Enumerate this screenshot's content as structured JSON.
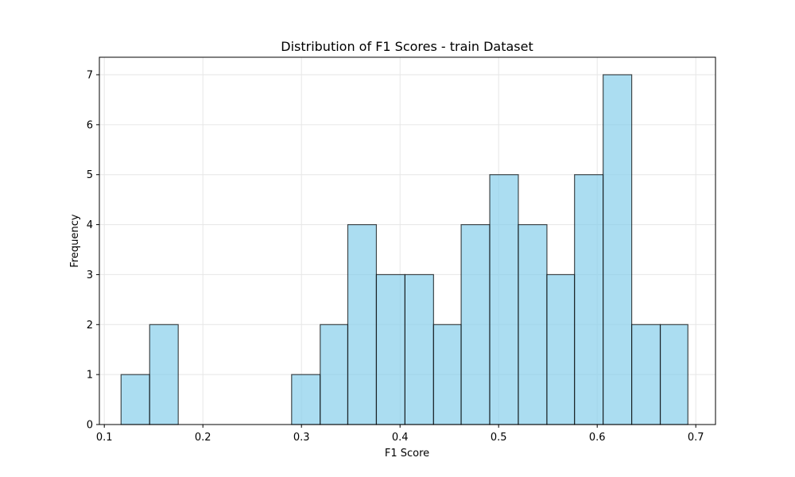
{
  "chart_data": {
    "type": "bar",
    "title": "Distribution of F1 Scores - train Dataset",
    "xlabel": "F1 Score",
    "ylabel": "Frequency",
    "xlim": [
      0.095,
      0.72
    ],
    "ylim": [
      0,
      7.35
    ],
    "grid": true,
    "bins": [
      {
        "start": 0.117,
        "end": 0.146,
        "count": 1
      },
      {
        "start": 0.146,
        "end": 0.175,
        "count": 2
      },
      {
        "start": 0.175,
        "end": 0.204,
        "count": 0
      },
      {
        "start": 0.204,
        "end": 0.232,
        "count": 0
      },
      {
        "start": 0.232,
        "end": 0.261,
        "count": 0
      },
      {
        "start": 0.261,
        "end": 0.29,
        "count": 0
      },
      {
        "start": 0.29,
        "end": 0.319,
        "count": 1
      },
      {
        "start": 0.319,
        "end": 0.347,
        "count": 2
      },
      {
        "start": 0.347,
        "end": 0.376,
        "count": 4
      },
      {
        "start": 0.376,
        "end": 0.405,
        "count": 3
      },
      {
        "start": 0.405,
        "end": 0.434,
        "count": 3
      },
      {
        "start": 0.434,
        "end": 0.462,
        "count": 2
      },
      {
        "start": 0.462,
        "end": 0.491,
        "count": 4
      },
      {
        "start": 0.491,
        "end": 0.52,
        "count": 5
      },
      {
        "start": 0.52,
        "end": 0.549,
        "count": 4
      },
      {
        "start": 0.549,
        "end": 0.577,
        "count": 3
      },
      {
        "start": 0.577,
        "end": 0.606,
        "count": 5
      },
      {
        "start": 0.606,
        "end": 0.635,
        "count": 7
      },
      {
        "start": 0.635,
        "end": 0.664,
        "count": 2
      },
      {
        "start": 0.664,
        "end": 0.692,
        "count": 2
      }
    ],
    "x_ticks": [
      {
        "value": 0.1,
        "label": "0.1"
      },
      {
        "value": 0.2,
        "label": "0.2"
      },
      {
        "value": 0.3,
        "label": "0.3"
      },
      {
        "value": 0.4,
        "label": "0.4"
      },
      {
        "value": 0.5,
        "label": "0.5"
      },
      {
        "value": 0.6,
        "label": "0.6"
      },
      {
        "value": 0.7,
        "label": "0.7"
      }
    ],
    "y_ticks": [
      {
        "value": 0,
        "label": "0"
      },
      {
        "value": 1,
        "label": "1"
      },
      {
        "value": 2,
        "label": "2"
      },
      {
        "value": 3,
        "label": "3"
      },
      {
        "value": 4,
        "label": "4"
      },
      {
        "value": 5,
        "label": "5"
      },
      {
        "value": 6,
        "label": "6"
      },
      {
        "value": 7,
        "label": "7"
      }
    ],
    "colors": {
      "bar_fill": "#87ceeb",
      "bar_edge": "#000000",
      "grid": "#e6e6e6",
      "axis": "#000000"
    }
  }
}
